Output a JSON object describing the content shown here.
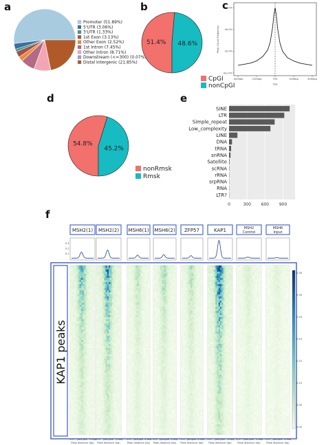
{
  "panel_labels": {
    "a": "a",
    "b": "b",
    "c": "c",
    "d": "d",
    "e": "e",
    "f": "f"
  },
  "colors": {
    "promoter": "#a9cbe0",
    "utr5": "#3a6fa0",
    "utr3": "#3a9d7a",
    "exon1": "#a05050",
    "other_exon": "#f08a2c",
    "intron1": "#b36a84",
    "other_intron": "#f2a6b5",
    "downstream": "#a59ac8",
    "distal": "#b05a2a",
    "cpgi": "#f2716d",
    "noncpgi": "#16bcc2",
    "bar": "#595959",
    "heat_dark": "#08519c"
  },
  "chart_data": [
    {
      "type": "pie",
      "panel": "a",
      "labels": [
        "Promoter (51.89%)",
        "5'UTR (3.06%)",
        "3'UTR (1.33%)",
        "1st Exon (3.13%)",
        "Other Exon (2.52%)",
        "1st Intron (7.45%)",
        "Other Intron (8.71%)",
        "Downstream (<=300) (0.07%)",
        "Distal Intergenic (21.85%)"
      ],
      "values": [
        51.89,
        3.06,
        1.33,
        3.13,
        2.52,
        7.45,
        8.71,
        0.07,
        21.85
      ],
      "color_keys": [
        "promoter",
        "utr5",
        "utr3",
        "exon1",
        "other_exon",
        "intron1",
        "other_intron",
        "downstream",
        "distal"
      ]
    },
    {
      "type": "pie",
      "panel": "b",
      "labels": [
        "CpGI",
        "nonCpGI"
      ],
      "values": [
        51.4,
        48.6
      ],
      "slice_text": [
        "51.4%",
        "48.6%"
      ],
      "color_keys": [
        "cpgi",
        "noncpgi"
      ]
    },
    {
      "type": "line",
      "panel": "c",
      "xlabel": "TSS",
      "ylabel": "Peak Count Frequency",
      "x_ticks": [
        "-3000bp",
        "-1500bp",
        "TSS",
        "1500bp",
        "3000bp"
      ],
      "y_ticks": [
        "0e+00",
        "2e-04",
        "4e-04",
        "6e-04"
      ],
      "xlim": [
        -3000,
        3000
      ],
      "ylim": [
        0,
        0.00062
      ],
      "x": [
        -3000,
        -2500,
        -2000,
        -1500,
        -1000,
        -600,
        -400,
        -200,
        -100,
        0,
        100,
        200,
        400,
        600,
        1000,
        1500,
        2000,
        2500,
        3000
      ],
      "y": [
        7e-05,
        8e-05,
        9e-05,
        0.00011,
        0.00015,
        0.00021,
        0.00028,
        0.00042,
        0.00053,
        0.0006,
        0.00053,
        0.00041,
        0.00027,
        0.0002,
        0.00014,
        0.00011,
        9e-05,
        8e-05,
        7e-05
      ]
    },
    {
      "type": "pie",
      "panel": "d",
      "labels": [
        "nonRmsk",
        "Rmsk"
      ],
      "values": [
        54.8,
        45.2
      ],
      "slice_text": [
        "54.8%",
        "45.2%"
      ],
      "color_keys": [
        "cpgi",
        "noncpgi"
      ]
    },
    {
      "type": "bar",
      "panel": "e",
      "orientation": "horizontal",
      "categories": [
        "SINE",
        "LTR",
        "Simple_repeat",
        "Low_complexity",
        "LINE",
        "DNA",
        "tRNA",
        "snRNA",
        "Satellite",
        "scRNA",
        "rRNA",
        "srpRNA",
        "RNA",
        "LTR?"
      ],
      "values": [
        1010,
        920,
        760,
        690,
        140,
        50,
        35,
        25,
        8,
        5,
        4,
        3,
        2,
        1
      ],
      "x_ticks": [
        "0",
        "300",
        "600",
        "900"
      ],
      "xlim": [
        0,
        1100
      ]
    },
    {
      "type": "heatmap",
      "panel": "f",
      "columns": [
        "MSH2(1)",
        "MSH2(2)",
        "MSH6(1)",
        "MSH6(2)",
        "ZFP57",
        "KAP1",
        "MSH2 Control",
        "MSH6 Input"
      ],
      "profile_peaks": [
        0.12,
        0.16,
        0.06,
        0.07,
        0.05,
        0.35,
        0.02,
        0.01
      ],
      "heat_intensity": [
        0.65,
        0.8,
        0.32,
        0.38,
        0.35,
        1.0,
        0.18,
        0.12
      ],
      "profile_y_ticks": [
        "0.3",
        "0.2",
        "0.1"
      ],
      "x_ticks": [
        "-1.5",
        "pkS",
        "pkE",
        "1.5Kb"
      ],
      "xlabel": "Peak distance (bp)",
      "colorbar_ticks": [
        "0.35",
        "0.30",
        "0.25",
        "0.20",
        "0.15",
        "0.10",
        "0.05",
        "0.00"
      ],
      "row_label": "KAP1 peaks"
    }
  ]
}
